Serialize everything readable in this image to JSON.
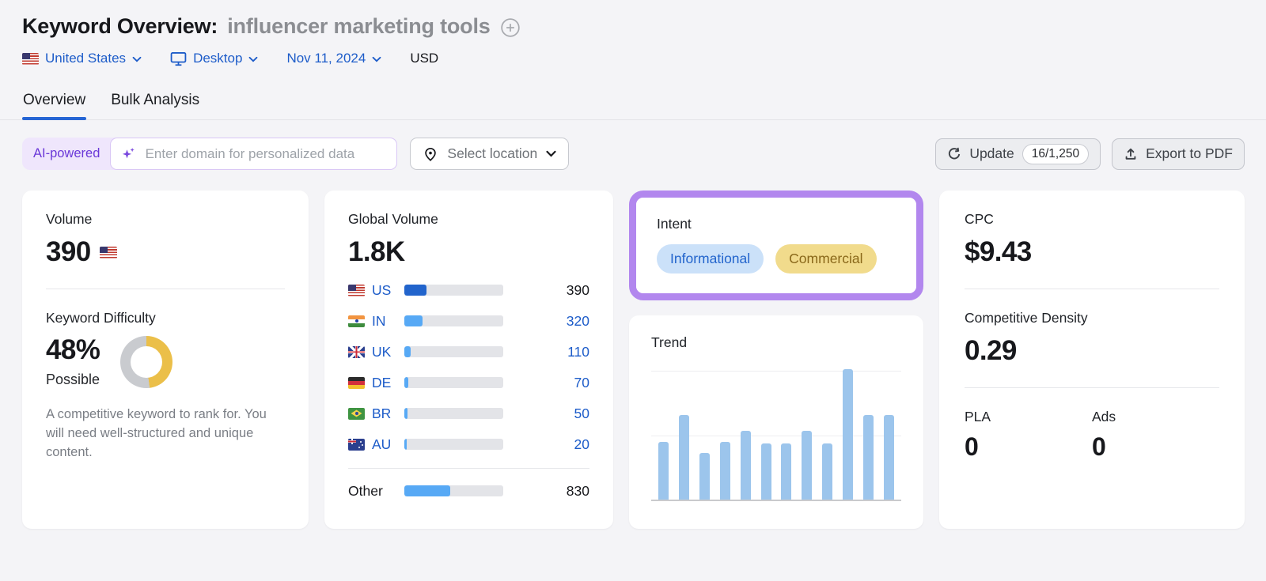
{
  "header": {
    "title": "Keyword Overview:",
    "keyword": "influencer marketing tools",
    "filters": {
      "location": "United States",
      "device": "Desktop",
      "date": "Nov 11, 2024",
      "currency": "USD"
    }
  },
  "tabs": {
    "overview": "Overview",
    "bulk_analysis": "Bulk Analysis"
  },
  "toolbar": {
    "ai_badge": "AI-powered",
    "domain_placeholder": "Enter domain for personalized data",
    "select_location": "Select location",
    "update_label": "Update",
    "update_quota": "16/1,250",
    "export_label": "Export to PDF"
  },
  "cards": {
    "volume": {
      "label": "Volume",
      "value": "390"
    },
    "keyword_difficulty": {
      "label": "Keyword Difficulty",
      "value": "48%",
      "percent": 48,
      "level": "Possible",
      "description": "A competitive keyword to rank for. You will need well-structured and unique content."
    },
    "global_volume": {
      "label": "Global Volume",
      "value": "1.8K",
      "rows": [
        {
          "country": "US",
          "value": "390",
          "bar_pct": 22
        },
        {
          "country": "IN",
          "value": "320",
          "bar_pct": 18
        },
        {
          "country": "UK",
          "value": "110",
          "bar_pct": 6
        },
        {
          "country": "DE",
          "value": "70",
          "bar_pct": 4
        },
        {
          "country": "BR",
          "value": "50",
          "bar_pct": 3
        },
        {
          "country": "AU",
          "value": "20",
          "bar_pct": 2.5
        },
        {
          "country": "Other",
          "value": "830",
          "bar_pct": 46
        }
      ]
    },
    "intent": {
      "label": "Intent",
      "pills": [
        {
          "label": "Informational"
        },
        {
          "label": "Commercial"
        }
      ]
    },
    "trend": {
      "label": "Trend",
      "values": [
        44,
        65,
        36,
        44,
        53,
        43,
        43,
        53,
        43,
        100,
        65,
        65
      ]
    },
    "cpc": {
      "label": "CPC",
      "value": "$9.43"
    },
    "competitive_density": {
      "label": "Competitive Density",
      "value": "0.29"
    },
    "pla": {
      "label": "PLA",
      "value": "0"
    },
    "ads": {
      "label": "Ads",
      "value": "0"
    }
  },
  "colors": {
    "accent_blue": "#1D5CC9",
    "active_tab_underline": "#2565D4",
    "us_bar_fill": "#2264CC",
    "country_bar_fill": "#57A9F5",
    "bar_track": "#E3E4E8",
    "trend_bar": "#9CC5EC",
    "kd_ring": "#EBBF49",
    "kd_track": "#C9CBCF",
    "intent_informational_bg": "#CBE1F9",
    "intent_informational_text": "#2264CC",
    "intent_commercial_bg": "#F1DB8C",
    "intent_commercial_text": "#8A681A",
    "highlight_purple": "#B287EE",
    "ai_badge_bg": "#EFE6FC",
    "ai_badge_text": "#6A38D8"
  },
  "chart_data": [
    {
      "type": "bar",
      "title": "Trend",
      "x": [
        "1",
        "2",
        "3",
        "4",
        "5",
        "6",
        "7",
        "8",
        "9",
        "10",
        "11",
        "12"
      ],
      "values": [
        44,
        65,
        36,
        44,
        53,
        43,
        43,
        53,
        43,
        100,
        65,
        65
      ],
      "xlabel": "",
      "ylabel": "",
      "ylim": [
        0,
        100
      ],
      "note": "relative monthly search interest; light gridlines at 50% and 100%, no tick labels"
    },
    {
      "type": "bar",
      "title": "Global Volume by country",
      "categories": [
        "US",
        "IN",
        "UK",
        "DE",
        "BR",
        "AU",
        "Other"
      ],
      "values": [
        390,
        320,
        110,
        70,
        50,
        20,
        830
      ],
      "total_label": "1.8K"
    },
    {
      "type": "pie",
      "title": "Keyword Difficulty donut",
      "categories": [
        "difficulty",
        "remaining"
      ],
      "values": [
        48,
        52
      ]
    }
  ]
}
